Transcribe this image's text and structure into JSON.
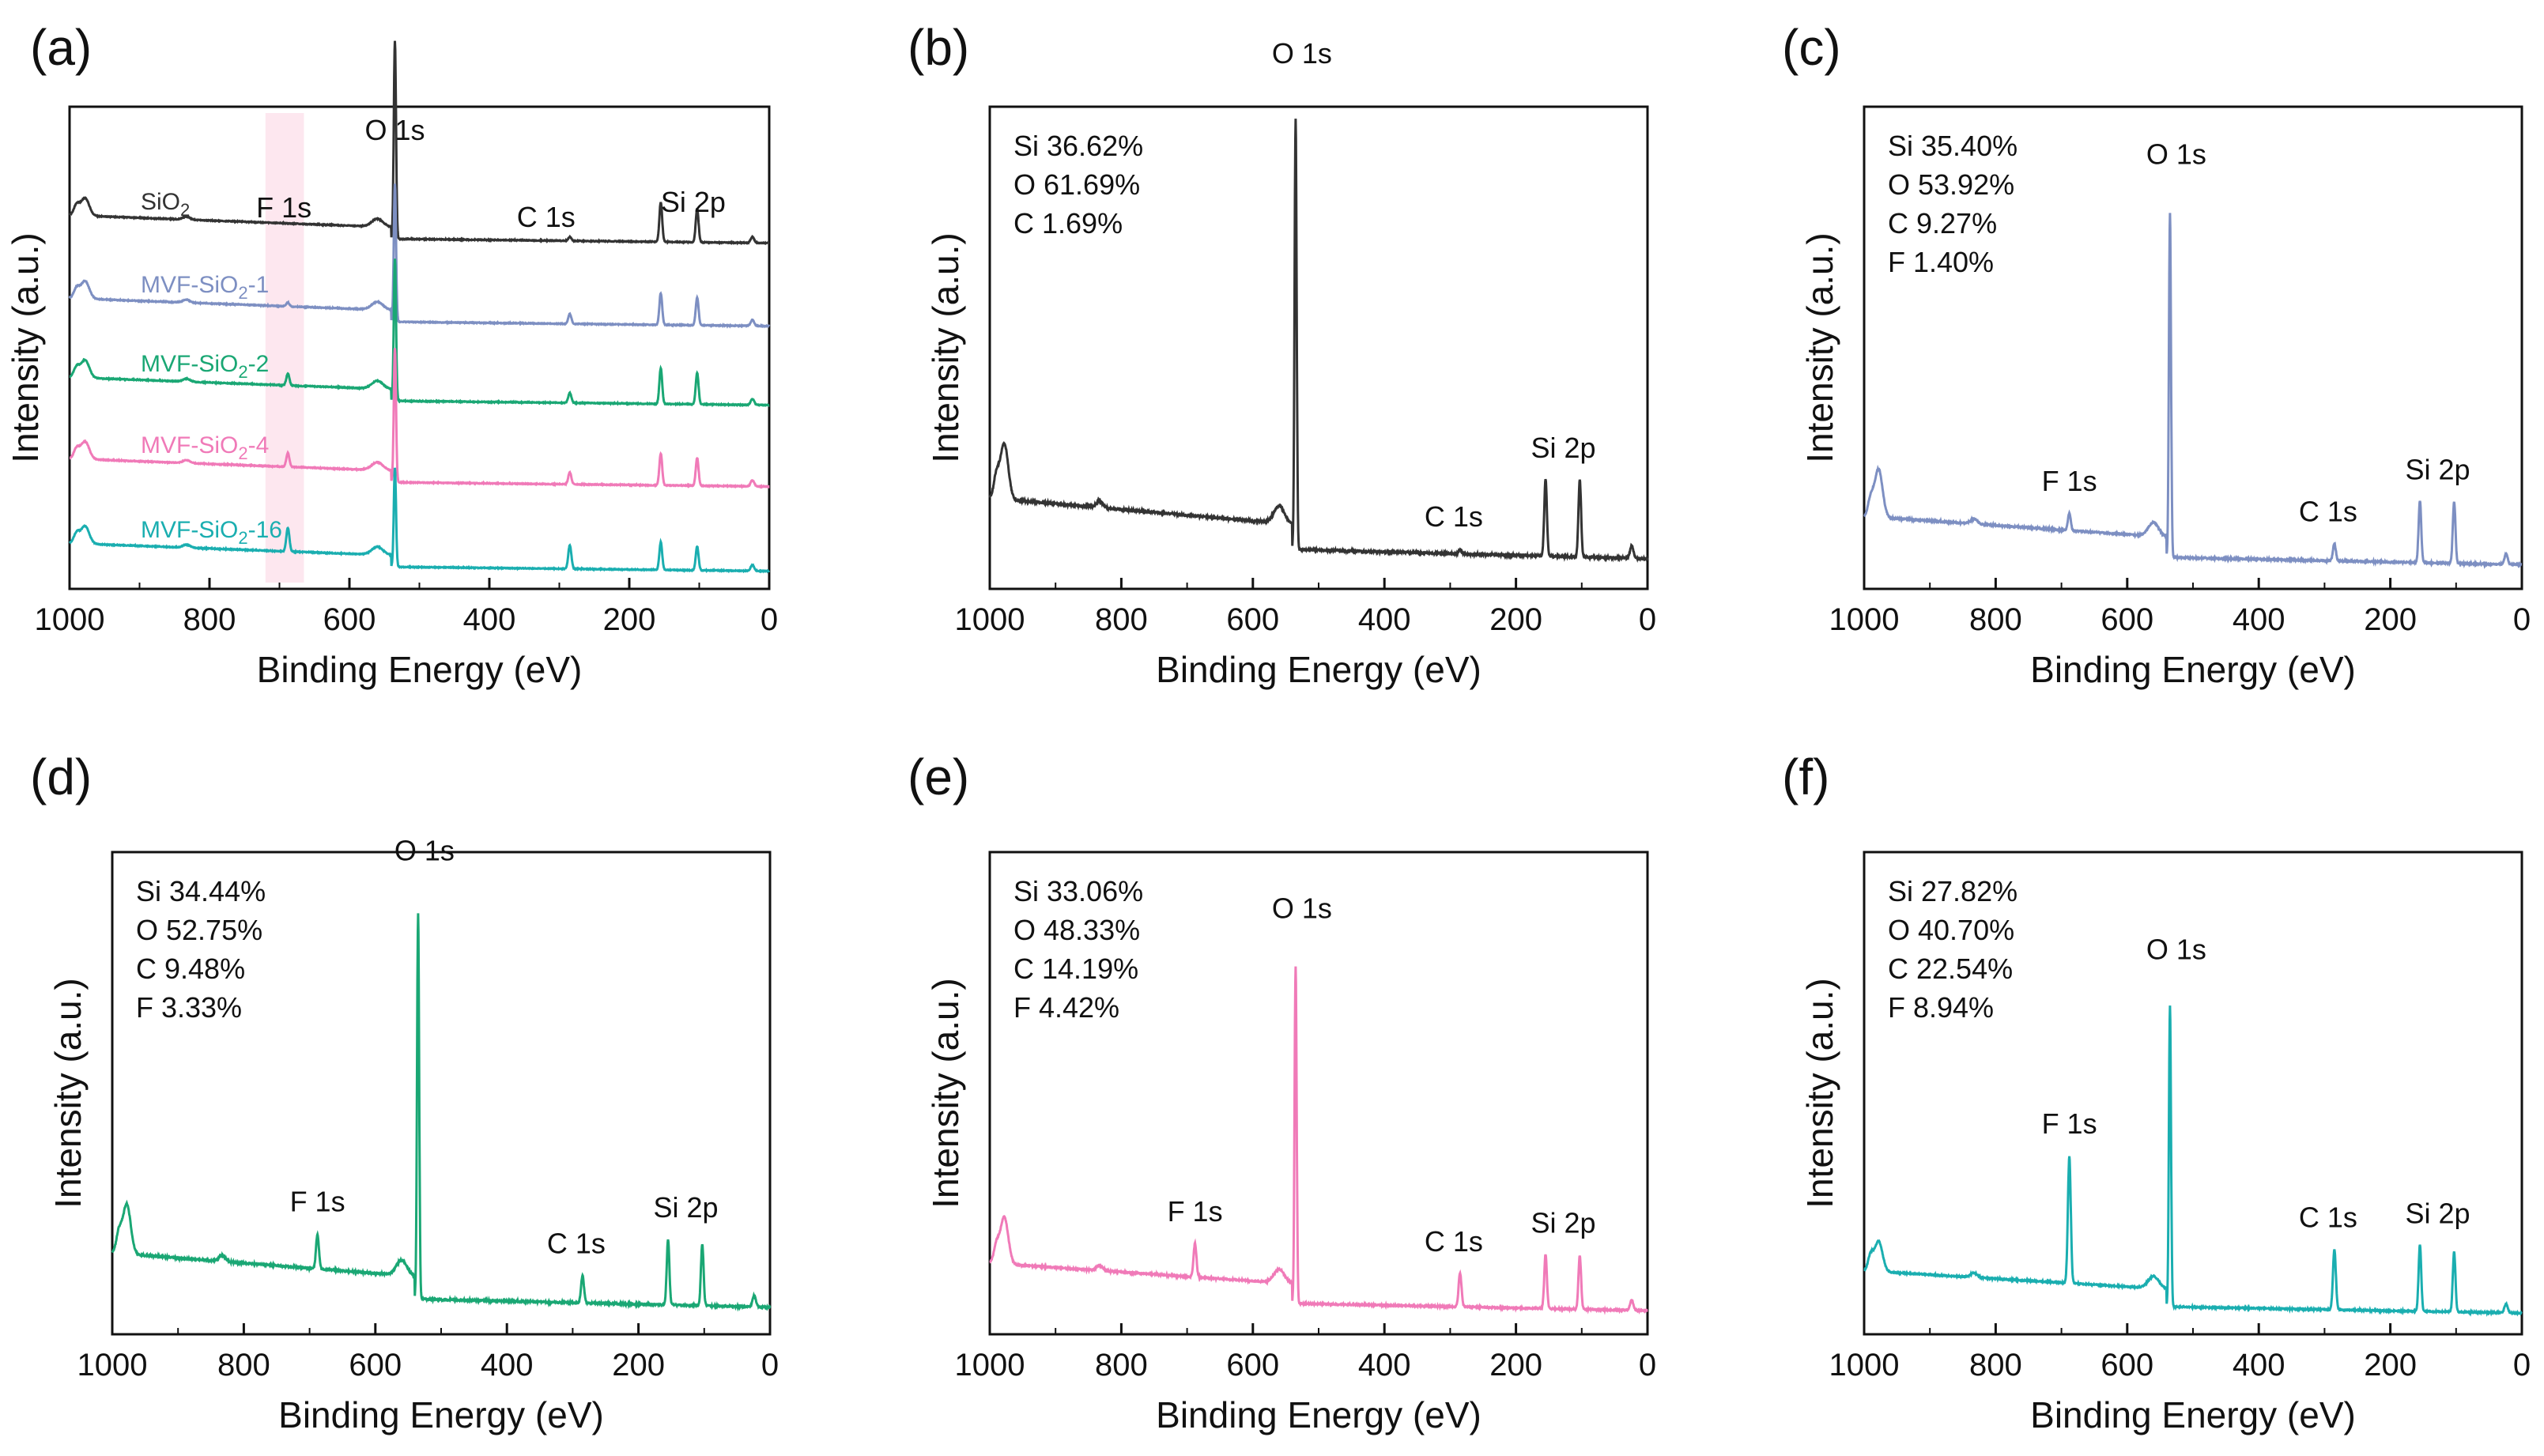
{
  "figure": {
    "series_colors": {
      "SiO2": "#333333",
      "MVF-SiO2-1": "#7d8fc2",
      "MVF-SiO2-2": "#1aa774",
      "MVF-SiO2-4": "#f07ab8",
      "MVF-SiO2-16": "#1aaeb0"
    },
    "highlight_color": "#fde7ef"
  },
  "chart_data": [
    {
      "panel": "(a)",
      "type": "line",
      "xlabel": "Binding Energy (eV)",
      "ylabel": "Intensity (a.u.)",
      "xlim": [
        1000,
        0
      ],
      "xticks": [
        "1000",
        "800",
        "600",
        "400",
        "200",
        "0"
      ],
      "xtick_values": [
        1000,
        800,
        600,
        400,
        200,
        0
      ],
      "highlight_band": [
        720,
        665
      ],
      "peak_labels": [
        {
          "text": "O 1s",
          "x": 535
        },
        {
          "text": "F 1s",
          "x": 688
        },
        {
          "text": "C 1s",
          "x": 285
        },
        {
          "text": "Si 2p",
          "x": 103
        }
      ],
      "series": [
        {
          "name": "SiO2",
          "name_main": "SiO",
          "name_sub": "2",
          "name_tail": "",
          "color": "#333333",
          "baseline": 0.0,
          "o1s": 1.0,
          "f1s": 0.0,
          "c1s": 0.02,
          "si2p": 0.17,
          "si2s": 0.2
        },
        {
          "name": "MVF-SiO2-1",
          "name_main": "MVF-SiO",
          "name_sub": "2",
          "name_tail": "-1",
          "color": "#7d8fc2",
          "baseline": 0.0,
          "o1s": 0.7,
          "f1s": 0.02,
          "c1s": 0.05,
          "si2p": 0.14,
          "si2s": 0.16
        },
        {
          "name": "MVF-SiO2-2",
          "name_main": "MVF-SiO",
          "name_sub": "2",
          "name_tail": "-2",
          "color": "#1aa774",
          "baseline": 0.0,
          "o1s": 0.72,
          "f1s": 0.06,
          "c1s": 0.05,
          "si2p": 0.16,
          "si2s": 0.18
        },
        {
          "name": "MVF-SiO2-4",
          "name_main": "MVF-SiO",
          "name_sub": "2",
          "name_tail": "-4",
          "color": "#f07ab8",
          "baseline": 0.0,
          "o1s": 0.68,
          "f1s": 0.07,
          "c1s": 0.06,
          "si2p": 0.14,
          "si2s": 0.16
        },
        {
          "name": "MVF-SiO2-16",
          "name_main": "MVF-SiO",
          "name_sub": "2",
          "name_tail": "-16",
          "color": "#1aaeb0",
          "baseline": 0.0,
          "o1s": 0.5,
          "f1s": 0.12,
          "c1s": 0.12,
          "si2p": 0.12,
          "si2s": 0.14
        }
      ]
    },
    {
      "panel": "(b)",
      "type": "line",
      "xlabel": "Binding Energy (eV)",
      "ylabel": "Intensity (a.u.)",
      "xlim": [
        1000,
        0
      ],
      "xticks": [
        "1000",
        "800",
        "600",
        "400",
        "200",
        "0"
      ],
      "xtick_values": [
        1000,
        800,
        600,
        400,
        200,
        0
      ],
      "color": "#333333",
      "composition": [
        "Si 36.62%",
        "O 61.69%",
        "C 1.69%"
      ],
      "peak_labels": [
        {
          "text": "O 1s",
          "x": 535
        },
        {
          "text": "C 1s",
          "x": 285
        },
        {
          "text": "Si 2p",
          "x": 103
        }
      ],
      "peaks": {
        "o1s": 1.0,
        "f1s": 0.0,
        "c1s": 0.01,
        "si2p": 0.18,
        "si2s": 0.18,
        "auger": 0.13
      },
      "ylim": [
        -0.05,
        1.07
      ]
    },
    {
      "panel": "(c)",
      "type": "line",
      "xlabel": "Binding Energy (eV)",
      "ylabel": "Intensity (a.u.)",
      "xlim": [
        1000,
        0
      ],
      "xticks": [
        "1000",
        "800",
        "600",
        "400",
        "200",
        "0"
      ],
      "xtick_values": [
        1000,
        800,
        600,
        400,
        200,
        0
      ],
      "color": "#7d8fc2",
      "composition": [
        "Si 35.40%",
        "O 53.92%",
        "C 9.27%",
        "F 1.40%"
      ],
      "peak_labels": [
        {
          "text": "O 1s",
          "x": 535
        },
        {
          "text": "F 1s",
          "x": 688
        },
        {
          "text": "C 1s",
          "x": 285
        },
        {
          "text": "Si 2p",
          "x": 103
        }
      ],
      "peaks": {
        "o1s": 1.0,
        "f1s": 0.05,
        "c1s": 0.05,
        "si2p": 0.18,
        "si2s": 0.18,
        "auger": 0.14
      },
      "ylim": [
        -0.05,
        1.35
      ]
    },
    {
      "panel": "(d)",
      "type": "line",
      "xlabel": "Binding Energy (eV)",
      "ylabel": "Intensity (a.u.)",
      "xlim": [
        1000,
        0
      ],
      "xticks": [
        "1000",
        "800",
        "600",
        "400",
        "200",
        "0"
      ],
      "xtick_values": [
        1000,
        800,
        600,
        400,
        200,
        0
      ],
      "color": "#1aa774",
      "composition": [
        "Si 34.44%",
        "O 52.75%",
        "C 9.48%",
        "F 3.33%"
      ],
      "peak_labels": [
        {
          "text": "O 1s",
          "x": 535
        },
        {
          "text": "F 1s",
          "x": 688
        },
        {
          "text": "C 1s",
          "x": 285
        },
        {
          "text": "Si 2p",
          "x": 103
        }
      ],
      "peaks": {
        "o1s": 1.0,
        "f1s": 0.09,
        "c1s": 0.07,
        "si2p": 0.16,
        "si2s": 0.17,
        "auger": 0.13
      },
      "ylim": [
        -0.05,
        1.2
      ]
    },
    {
      "panel": "(e)",
      "type": "line",
      "xlabel": "Binding Energy (eV)",
      "ylabel": "Intensity (a.u.)",
      "xlim": [
        1000,
        0
      ],
      "xticks": [
        "1000",
        "800",
        "600",
        "400",
        "200",
        "0"
      ],
      "xtick_values": [
        1000,
        800,
        600,
        400,
        200,
        0
      ],
      "color": "#f07ab8",
      "composition": [
        "Si 33.06%",
        "O 48.33%",
        "C 14.19%",
        "F 4.42%"
      ],
      "peak_labels": [
        {
          "text": "O 1s",
          "x": 535
        },
        {
          "text": "F 1s",
          "x": 688
        },
        {
          "text": "C 1s",
          "x": 285
        },
        {
          "text": "Si 2p",
          "x": 103
        }
      ],
      "peaks": {
        "o1s": 1.0,
        "f1s": 0.1,
        "c1s": 0.1,
        "si2p": 0.16,
        "si2s": 0.16,
        "auger": 0.14
      },
      "ylim": [
        -0.05,
        1.38
      ]
    },
    {
      "panel": "(f)",
      "type": "line",
      "xlabel": "Binding Energy (eV)",
      "ylabel": "Intensity (a.u.)",
      "xlim": [
        1000,
        0
      ],
      "xticks": [
        "1000",
        "800",
        "600",
        "400",
        "200",
        "0"
      ],
      "xtick_values": [
        1000,
        800,
        600,
        400,
        200,
        0
      ],
      "color": "#1aaeb0",
      "composition": [
        "Si 27.82%",
        "O 40.70%",
        "C 22.54%",
        "F 8.94%"
      ],
      "peak_labels": [
        {
          "text": "O 1s",
          "x": 535
        },
        {
          "text": "F 1s",
          "x": 688
        },
        {
          "text": "C 1s",
          "x": 285
        },
        {
          "text": "Si 2p",
          "x": 103
        }
      ],
      "peaks": {
        "o1s": 1.0,
        "f1s": 0.42,
        "c1s": 0.2,
        "si2p": 0.2,
        "si2s": 0.22,
        "auger": 0.1
      },
      "ylim": [
        -0.05,
        1.55
      ]
    }
  ]
}
